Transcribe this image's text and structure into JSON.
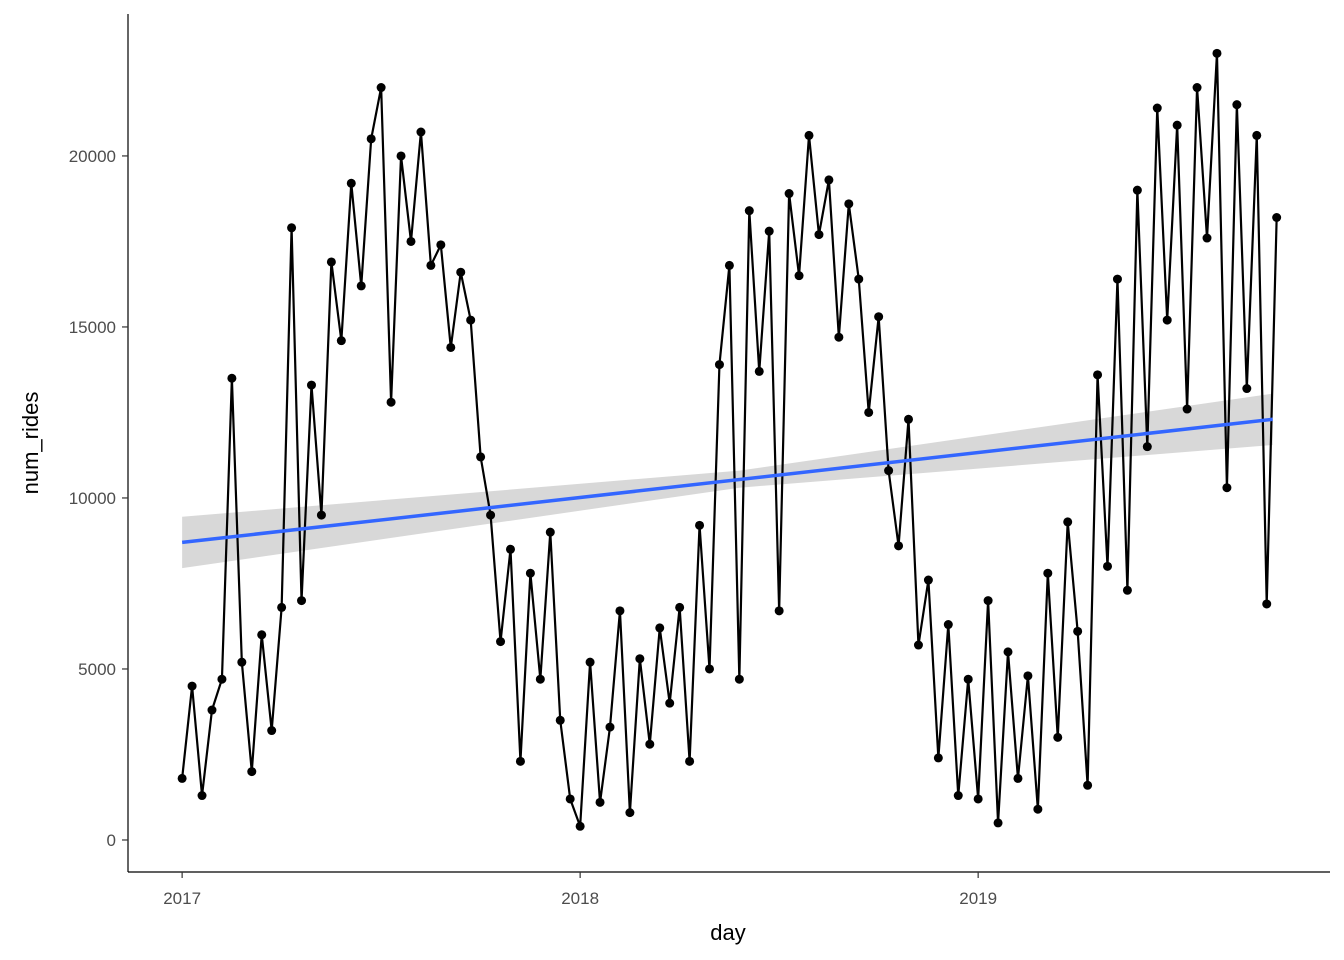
{
  "chart_data": {
    "type": "line",
    "x_label": "day",
    "y_label": "num_rides",
    "xlim": [
      2016.864,
      2019.884
    ],
    "ylim": [
      -936,
      24150
    ],
    "xticks": [
      2017,
      2018,
      2019
    ],
    "yticks": [
      0,
      5000,
      10000,
      15000,
      20000
    ],
    "x": [
      2017.0,
      2017.025,
      2017.05,
      2017.075,
      2017.1,
      2017.125,
      2017.15,
      2017.175,
      2017.2,
      2017.225,
      2017.25,
      2017.275,
      2017.3,
      2017.325,
      2017.35,
      2017.375,
      2017.4,
      2017.425,
      2017.45,
      2017.475,
      2017.5,
      2017.525,
      2017.55,
      2017.575,
      2017.6,
      2017.625,
      2017.65,
      2017.675,
      2017.7,
      2017.725,
      2017.75,
      2017.775,
      2017.8,
      2017.825,
      2017.85,
      2017.875,
      2017.9,
      2017.925,
      2017.95,
      2017.975,
      2018.0,
      2018.025,
      2018.05,
      2018.075,
      2018.1,
      2018.125,
      2018.15,
      2018.175,
      2018.2,
      2018.225,
      2018.25,
      2018.275,
      2018.3,
      2018.325,
      2018.35,
      2018.375,
      2018.4,
      2018.425,
      2018.45,
      2018.475,
      2018.5,
      2018.525,
      2018.55,
      2018.575,
      2018.6,
      2018.625,
      2018.65,
      2018.675,
      2018.7,
      2018.725,
      2018.75,
      2018.775,
      2018.8,
      2018.825,
      2018.85,
      2018.875,
      2018.9,
      2018.925,
      2018.95,
      2018.975,
      2019.0,
      2019.025,
      2019.05,
      2019.075,
      2019.1,
      2019.125,
      2019.15,
      2019.175,
      2019.2,
      2019.225,
      2019.25,
      2019.275,
      2019.3,
      2019.325,
      2019.35,
      2019.375,
      2019.4,
      2019.425,
      2019.45,
      2019.475,
      2019.5,
      2019.525,
      2019.55,
      2019.575,
      2019.6,
      2019.625,
      2019.65,
      2019.675,
      2019.7,
      2019.725,
      2019.75
    ],
    "series": [
      {
        "color": "#000000",
        "values": [
          1800,
          4500,
          1300,
          3800,
          4700,
          13500,
          5200,
          2000,
          6000,
          3200,
          6800,
          17900,
          7000,
          13300,
          9500,
          16900,
          14600,
          19200,
          16200,
          20500,
          22000,
          12800,
          20000,
          17500,
          20700,
          16800,
          17400,
          14400,
          16600,
          15200,
          11200,
          9500,
          5800,
          8500,
          2300,
          7800,
          4700,
          9000,
          3500,
          1200,
          400,
          5200,
          1100,
          3300,
          6700,
          800,
          5300,
          2800,
          6200,
          4000,
          6800,
          2300,
          9200,
          5000,
          13900,
          16800,
          4700,
          18400,
          13700,
          17800,
          6700,
          18900,
          16500,
          20600,
          17700,
          19300,
          14700,
          18600,
          16400,
          12500,
          15300,
          10800,
          8600,
          12300,
          5700,
          7600,
          2400,
          6300,
          1300,
          4700,
          1200,
          7000,
          500,
          5500,
          1800,
          4800,
          900,
          7800,
          3000,
          9300,
          6100,
          1600,
          13600,
          8000,
          16400,
          7300,
          19000,
          11500,
          21400,
          15200,
          20900,
          12600,
          22000,
          17600,
          23000,
          10300,
          21500,
          13200,
          20600,
          6900,
          18200
        ]
      }
    ],
    "trend": {
      "color": "#3366ff",
      "x": [
        2017.0,
        2019.74
      ],
      "values": [
        8700,
        12300
      ]
    },
    "band": {
      "color": "#bebebe",
      "x": [
        2017.0,
        2018.4,
        2019.74
      ],
      "lower": [
        7950,
        10300,
        11550
      ],
      "upper": [
        9450,
        10800,
        13050
      ]
    }
  }
}
